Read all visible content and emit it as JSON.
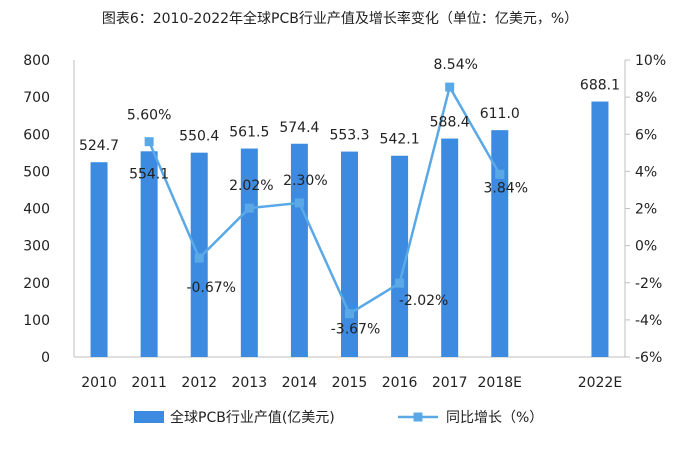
{
  "chart_data": {
    "type": "bar",
    "title": "图表6：2010-2022年全球PCB行业产值及增长率变化（单位：亿美元，%）",
    "categories": [
      "2010",
      "2011",
      "2012",
      "2013",
      "2014",
      "2015",
      "2016",
      "2017",
      "2018E",
      "",
      "2022E"
    ],
    "series": [
      {
        "name": "全球PCB行业产值(亿美元)",
        "type": "bar",
        "axis": "left",
        "color": "#3d8be0",
        "values": [
          524.7,
          554.1,
          550.4,
          561.5,
          574.4,
          553.3,
          542.1,
          588.4,
          611.0,
          null,
          688.1
        ],
        "labels": [
          "524.7",
          "554.1",
          "550.4",
          "561.5",
          "574.4",
          "553.3",
          "542.1",
          "588.4",
          "611.0",
          "",
          "688.1"
        ]
      },
      {
        "name": "同比增长（%）",
        "type": "line",
        "axis": "right",
        "color": "#5aa9e6",
        "values": [
          null,
          5.6,
          -0.67,
          2.02,
          2.3,
          -3.67,
          -2.02,
          8.54,
          3.84,
          null,
          null
        ],
        "labels": [
          "",
          "5.60%",
          "-0.67%",
          "2.02%",
          "2.30%",
          "-3.67%",
          "-2.02%",
          "8.54%",
          "3.84%",
          "",
          ""
        ]
      }
    ],
    "y_left": {
      "min": 0,
      "max": 800,
      "step": 100,
      "ticks": [
        "0",
        "100",
        "200",
        "300",
        "400",
        "500",
        "600",
        "700",
        "800"
      ]
    },
    "y_right": {
      "min": -6,
      "max": 10,
      "step": 2,
      "ticks": [
        "-6%",
        "-4%",
        "-2%",
        "0%",
        "2%",
        "4%",
        "6%",
        "8%",
        "10%"
      ]
    },
    "legend_position": "bottom",
    "grid": false
  }
}
